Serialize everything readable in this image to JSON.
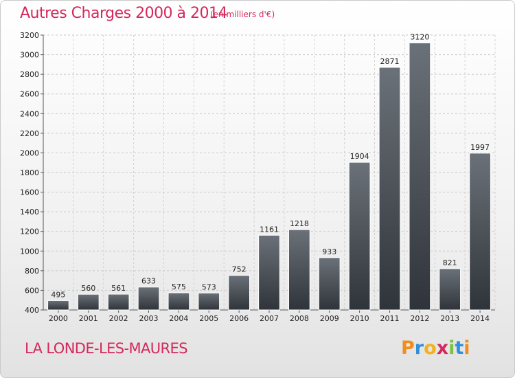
{
  "header": {
    "title": "Autres Charges 2000 à 2014",
    "subtitle": "(en milliers d'€)"
  },
  "footer": {
    "town": "LA LONDE-LES-MAURES",
    "logo_text": "Proxiti",
    "logo_letters": [
      {
        "ch": "P",
        "color": "#f28c1c"
      },
      {
        "ch": "r",
        "color": "#2f8fd8"
      },
      {
        "ch": "o",
        "color": "#f2b21c"
      },
      {
        "ch": "x",
        "color": "#d5285b"
      },
      {
        "ch": "i",
        "color": "#7cc242"
      },
      {
        "ch": "t",
        "color": "#2f8fd8"
      },
      {
        "ch": "i",
        "color": "#f28c1c"
      }
    ]
  },
  "chart_data": {
    "type": "bar",
    "title": "Autres Charges 2000 à 2014",
    "subtitle": "(en milliers d'€)",
    "xlabel": "",
    "ylabel": "",
    "categories": [
      "2000",
      "2001",
      "2002",
      "2003",
      "2004",
      "2005",
      "2006",
      "2007",
      "2008",
      "2009",
      "2010",
      "2011",
      "2012",
      "2013",
      "2014"
    ],
    "values": [
      495,
      560,
      561,
      633,
      575,
      573,
      752,
      1161,
      1218,
      933,
      1904,
      2871,
      3120,
      821,
      1997
    ],
    "ylim": [
      400,
      3200
    ],
    "yticks": [
      400,
      600,
      800,
      1000,
      1200,
      1400,
      1600,
      1800,
      2000,
      2200,
      2400,
      2600,
      2800,
      3000,
      3200
    ],
    "grid": true,
    "bar_color": "#4a5058"
  }
}
